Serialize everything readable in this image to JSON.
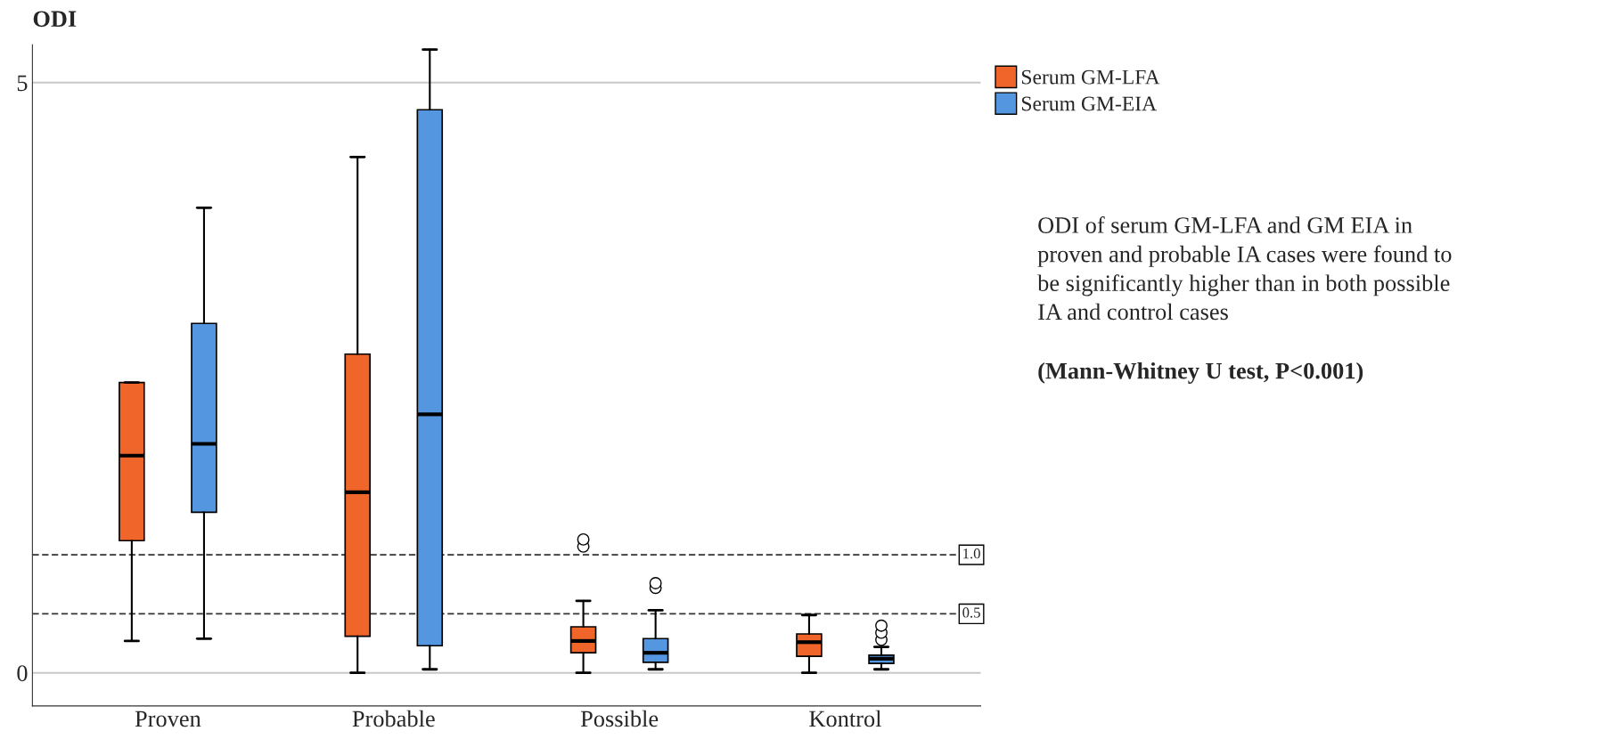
{
  "chart_data": {
    "type": "box",
    "ylabel": "ODI",
    "categories": [
      "Proven",
      "Probable",
      "Possible",
      "Kontrol"
    ],
    "series": [
      {
        "name": "Serum GM-LFA",
        "color": "#f0662a",
        "boxes": [
          {
            "low": 0.27,
            "q1": 1.12,
            "median": 1.84,
            "q3": 2.46,
            "high": 2.46
          },
          {
            "low": 0,
            "q1": 0.31,
            "median": 1.53,
            "q3": 2.7,
            "high": 4.37
          },
          {
            "low": 0,
            "q1": 0.17,
            "median": 0.27,
            "q3": 0.39,
            "high": 0.61,
            "outliers": [
              1.07,
              1.13
            ]
          },
          {
            "low": 0,
            "q1": 0.14,
            "median": 0.26,
            "q3": 0.33,
            "high": 0.49
          }
        ]
      },
      {
        "name": "Serum GM-EIA",
        "color": "#5596e0",
        "boxes": [
          {
            "low": 0.29,
            "q1": 1.36,
            "median": 1.94,
            "q3": 2.96,
            "high": 3.94
          },
          {
            "low": 0.03,
            "q1": 0.23,
            "median": 2.19,
            "q3": 4.77,
            "high": 5.28
          },
          {
            "low": 0.03,
            "q1": 0.09,
            "median": 0.17,
            "q3": 0.29,
            "high": 0.53,
            "outliers": [
              0.72,
              0.76
            ]
          },
          {
            "low": 0.03,
            "q1": 0.08,
            "median": 0.12,
            "q3": 0.15,
            "high": 0.22,
            "outliers": [
              0.28,
              0.34,
              0.4
            ]
          }
        ]
      }
    ],
    "ylim": [
      -0.28,
      5.32
    ],
    "yticks": [
      0,
      5
    ],
    "grid": "y",
    "legend": "top right",
    "ref_lines": [
      {
        "axis": "y",
        "value": 1.0,
        "label": "1.0",
        "line_style": "dashed"
      },
      {
        "axis": "y",
        "value": 0.5,
        "label": "0.5",
        "line_style": "dashed"
      }
    ],
    "annotations": [
      "ODI of serum GM-LFA and GM EIA in\nproven and probable IA cases were found to\nbe significantly higher than in both possible\nIA and control cases",
      "(Mann-Whitney U test, P<0.001)"
    ]
  }
}
